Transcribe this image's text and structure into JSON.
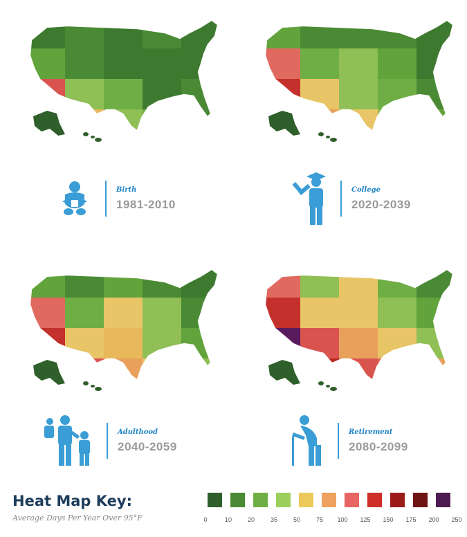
{
  "stages": [
    {
      "label": "Birth",
      "years": "1981-2010",
      "icon": "baby-icon",
      "fill": {
        "alaska": "#2f5f2a",
        "hawaii": "#2f5f2a",
        "bands": [
          [
            "#3d7a2f",
            "#4a8a34",
            "#3d7a2f",
            "#4a8a34",
            "#3d7a2f"
          ],
          [
            "#62a33c",
            "#4a8a34",
            "#3d7a2f",
            "#3d7a2f",
            "#3d7a2f"
          ],
          [
            "#d9544f",
            "#8fbf55",
            "#6fae45",
            "#3d7a2f",
            "#4a8a34"
          ],
          [
            "#c4302b",
            "#e7b85a",
            "#8fbf55",
            "#6fae45",
            "#4a8a34"
          ]
        ]
      }
    },
    {
      "label": "College",
      "years": "2020-2039",
      "icon": "graduate-icon",
      "fill": {
        "alaska": "#2f5f2a",
        "hawaii": "#2f5f2a",
        "bands": [
          [
            "#62a33c",
            "#4a8a34",
            "#4a8a34",
            "#4a8a34",
            "#3d7a2f"
          ],
          [
            "#e06a60",
            "#6fae45",
            "#8fbf55",
            "#62a33c",
            "#3d7a2f"
          ],
          [
            "#c4302b",
            "#e8c566",
            "#8fbf55",
            "#6fae45",
            "#4a8a34"
          ],
          [
            "#a8231f",
            "#e8a05a",
            "#e8c566",
            "#8fbf55",
            "#62a33c"
          ]
        ]
      }
    },
    {
      "label": "Adulthood",
      "years": "2040-2059",
      "icon": "family-icon",
      "fill": {
        "alaska": "#2f5f2a",
        "hawaii": "#2f5f2a",
        "bands": [
          [
            "#62a33c",
            "#4a8a34",
            "#62a33c",
            "#4a8a34",
            "#3d7a2f"
          ],
          [
            "#e06a60",
            "#6fae45",
            "#e8c566",
            "#8fbf55",
            "#4a8a34"
          ],
          [
            "#c4302b",
            "#e8c566",
            "#e8b85a",
            "#8fbf55",
            "#62a33c"
          ],
          [
            "#a8231f",
            "#d9544f",
            "#e8a05a",
            "#e8c566",
            "#8fbf55"
          ]
        ]
      }
    },
    {
      "label": "Retirement",
      "years": "2080-2099",
      "icon": "elder-with-cane-icon",
      "fill": {
        "alaska": "#2f5f2a",
        "hawaii": "#2f5f2a",
        "bands": [
          [
            "#e06a60",
            "#8fbf55",
            "#e8c566",
            "#6fae45",
            "#4a8a34"
          ],
          [
            "#c4302b",
            "#e8c566",
            "#e8c566",
            "#8fbf55",
            "#62a33c"
          ],
          [
            "#5a1a5e",
            "#d9544f",
            "#e8a05a",
            "#e8c566",
            "#8fbf55"
          ],
          [
            "#8a1d1a",
            "#b8261f",
            "#d9544f",
            "#e06a60",
            "#e8a05a"
          ]
        ]
      }
    }
  ],
  "key": {
    "title": "Heat Map Key:",
    "subtitle": "Average Days Per Year Over 95°F",
    "colors": [
      "#2f5f2a",
      "#4a8a34",
      "#6fae45",
      "#9ccf5c",
      "#ecc95a",
      "#eda25f",
      "#e86563",
      "#cf2e2b",
      "#9a1b19",
      "#6e1513",
      "#4e1a52"
    ],
    "ticks": [
      "0",
      "10",
      "20",
      "35",
      "50",
      "75",
      "100",
      "125",
      "150",
      "175",
      "200",
      "250"
    ]
  }
}
